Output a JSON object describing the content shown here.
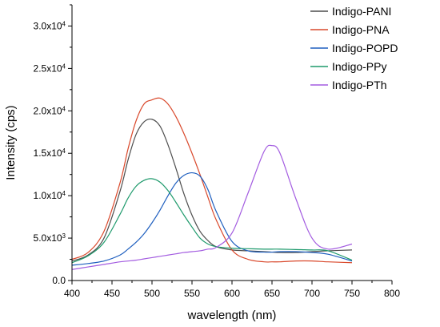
{
  "chart_data": {
    "type": "line",
    "xlabel": "wavelength (nm)",
    "ylabel": "Intensity (cps)",
    "xlim": [
      400,
      800
    ],
    "ylim": [
      0,
      32500
    ],
    "grid": false,
    "legend_position": "top-right",
    "x_ticks": [
      400,
      450,
      500,
      550,
      600,
      650,
      700,
      750,
      800
    ],
    "x_tick_labels": [
      "400",
      "450",
      "500",
      "550",
      "600",
      "650",
      "700",
      "750",
      "800"
    ],
    "y_ticks": [
      0,
      5000,
      10000,
      15000,
      20000,
      25000,
      30000
    ],
    "y_tick_labels": [
      {
        "mantissa": "0.0",
        "exp": ""
      },
      {
        "mantissa": "5.0x10",
        "exp": "3"
      },
      {
        "mantissa": "1.0x10",
        "exp": "4"
      },
      {
        "mantissa": "1.5x10",
        "exp": "4"
      },
      {
        "mantissa": "2.0x10",
        "exp": "4"
      },
      {
        "mantissa": "2.5x10",
        "exp": "4"
      },
      {
        "mantissa": "3.0x10",
        "exp": "4"
      }
    ],
    "x": [
      400,
      420,
      440,
      460,
      470,
      480,
      490,
      500,
      510,
      520,
      530,
      540,
      550,
      560,
      570,
      580,
      600,
      620,
      640,
      650,
      660,
      680,
      700,
      720,
      750
    ],
    "series": [
      {
        "name": "Indigo-PANI",
        "color": "#4d4d4d",
        "values": [
          2300,
          3000,
          5000,
          10500,
          14200,
          17200,
          18700,
          19000,
          18200,
          16000,
          13200,
          10200,
          7700,
          5800,
          4700,
          4000,
          3600,
          3500,
          3400,
          3350,
          3300,
          3300,
          3400,
          3500,
          3600
        ]
      },
      {
        "name": "Indigo-PNA",
        "color": "#d9482b",
        "values": [
          2500,
          3300,
          5800,
          11500,
          15500,
          18800,
          20800,
          21300,
          21500,
          20800,
          19300,
          17300,
          15000,
          12500,
          9800,
          7200,
          3600,
          2500,
          2200,
          2200,
          2200,
          2300,
          2300,
          2200,
          2100
        ]
      },
      {
        "name": "Indigo-POPD",
        "color": "#1f5fbf",
        "values": [
          1800,
          2000,
          2300,
          3000,
          3700,
          4500,
          5500,
          6800,
          8300,
          10000,
          11500,
          12400,
          12700,
          12300,
          10700,
          8200,
          4600,
          3500,
          3350,
          3350,
          3400,
          3400,
          3300,
          3100,
          2300
        ]
      },
      {
        "name": "Indigo-PPy",
        "color": "#1e9a6c",
        "values": [
          2100,
          2900,
          4500,
          7800,
          9700,
          11100,
          11800,
          12000,
          11600,
          10600,
          9200,
          7700,
          6300,
          5000,
          4300,
          4000,
          3800,
          3750,
          3700,
          3700,
          3700,
          3650,
          3600,
          3500,
          2400
        ]
      },
      {
        "name": "Indigo-PTh",
        "color": "#a35ce0",
        "values": [
          1300,
          1600,
          1900,
          2200,
          2300,
          2400,
          2550,
          2700,
          2850,
          3000,
          3150,
          3300,
          3400,
          3500,
          3700,
          3900,
          5600,
          10300,
          15200,
          15900,
          15000,
          9600,
          5000,
          3700,
          4300
        ]
      }
    ]
  }
}
